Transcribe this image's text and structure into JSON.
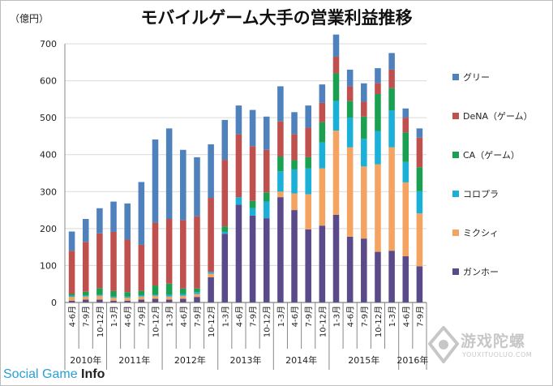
{
  "chart_data": {
    "type": "bar",
    "stacked": true,
    "title": "モバイルゲーム大手の営業利益推移",
    "ylabel": "（億円）",
    "ylim": [
      0,
      700
    ],
    "yticks": [
      0,
      100,
      200,
      300,
      400,
      500,
      600,
      700
    ],
    "categories": [
      "4-6月",
      "7-9月",
      "10-12月",
      "1-3月",
      "4-6月",
      "7-9月",
      "10-12月",
      "1-3月",
      "4-6月",
      "7-9月",
      "10-12月",
      "1-3月",
      "4-6月",
      "7-9月",
      "10-12月",
      "1-3月",
      "4-6月",
      "7-9月",
      "10-12月",
      "1-3月",
      "4-6月",
      "7-9月",
      "10-12月",
      "1-3月",
      "4-6月",
      "7-9月"
    ],
    "years": [
      {
        "label": "2010年",
        "start": 0,
        "count": 3
      },
      {
        "label": "2011年",
        "start": 3,
        "count": 4
      },
      {
        "label": "2012年",
        "start": 7,
        "count": 4
      },
      {
        "label": "2013年",
        "start": 11,
        "count": 4
      },
      {
        "label": "2014年",
        "start": 15,
        "count": 4
      },
      {
        "label": "2015年",
        "start": 19,
        "count": 5
      },
      {
        "label": "2016年",
        "start": 24,
        "count": 2
      }
    ],
    "series": [
      {
        "name": "ガンホー",
        "color": "#5b4a8a",
        "values": [
          5,
          8,
          8,
          5,
          5,
          8,
          10,
          8,
          10,
          15,
          68,
          186,
          265,
          235,
          228,
          285,
          250,
          198,
          208,
          237,
          178,
          173,
          137,
          140,
          125,
          98
        ]
      },
      {
        "name": "ミクシィ",
        "color": "#f4a460",
        "values": [
          10,
          8,
          10,
          8,
          8,
          8,
          8,
          8,
          8,
          8,
          10,
          0,
          0,
          0,
          0,
          15,
          45,
          95,
          155,
          228,
          242,
          195,
          237,
          280,
          200,
          143
        ]
      },
      {
        "name": "コロプラ",
        "color": "#1ab0d8",
        "values": [
          3,
          3,
          3,
          3,
          3,
          3,
          3,
          5,
          5,
          5,
          5,
          5,
          20,
          20,
          45,
          55,
          65,
          70,
          70,
          80,
          80,
          75,
          90,
          100,
          55,
          60
        ]
      },
      {
        "name": "CA（ゲーム）",
        "color": "#1aa050",
        "values": [
          5,
          10,
          18,
          15,
          12,
          12,
          25,
          30,
          15,
          10,
          0,
          15,
          0,
          20,
          25,
          40,
          25,
          30,
          55,
          75,
          45,
          60,
          100,
          60,
          80,
          65
        ]
      },
      {
        "name": "DeNA（ゲーム）",
        "color": "#c0504d",
        "values": [
          117,
          135,
          148,
          160,
          142,
          125,
          170,
          175,
          185,
          195,
          200,
          180,
          170,
          148,
          115,
          95,
          70,
          80,
          52,
          45,
          40,
          40,
          30,
          50,
          40,
          80
        ]
      },
      {
        "name": "グリー",
        "color": "#4f81bd",
        "values": [
          52,
          62,
          68,
          82,
          98,
          170,
          225,
          245,
          190,
          160,
          145,
          108,
          78,
          98,
          90,
          95,
          60,
          60,
          50,
          60,
          45,
          50,
          40,
          45,
          25,
          25
        ]
      }
    ],
    "legend": [
      "グリー",
      "DeNA（ゲーム）",
      "CA（ゲーム）",
      "コロプラ",
      "ミクシィ",
      "ガンホー"
    ],
    "legend_position": "right"
  },
  "branding": {
    "source_prefix": "Social Game ",
    "source_suffix": "Info",
    "watermark_text": "游戏陀螺",
    "watermark_sub": "YOUXITUOLUO.COM"
  }
}
